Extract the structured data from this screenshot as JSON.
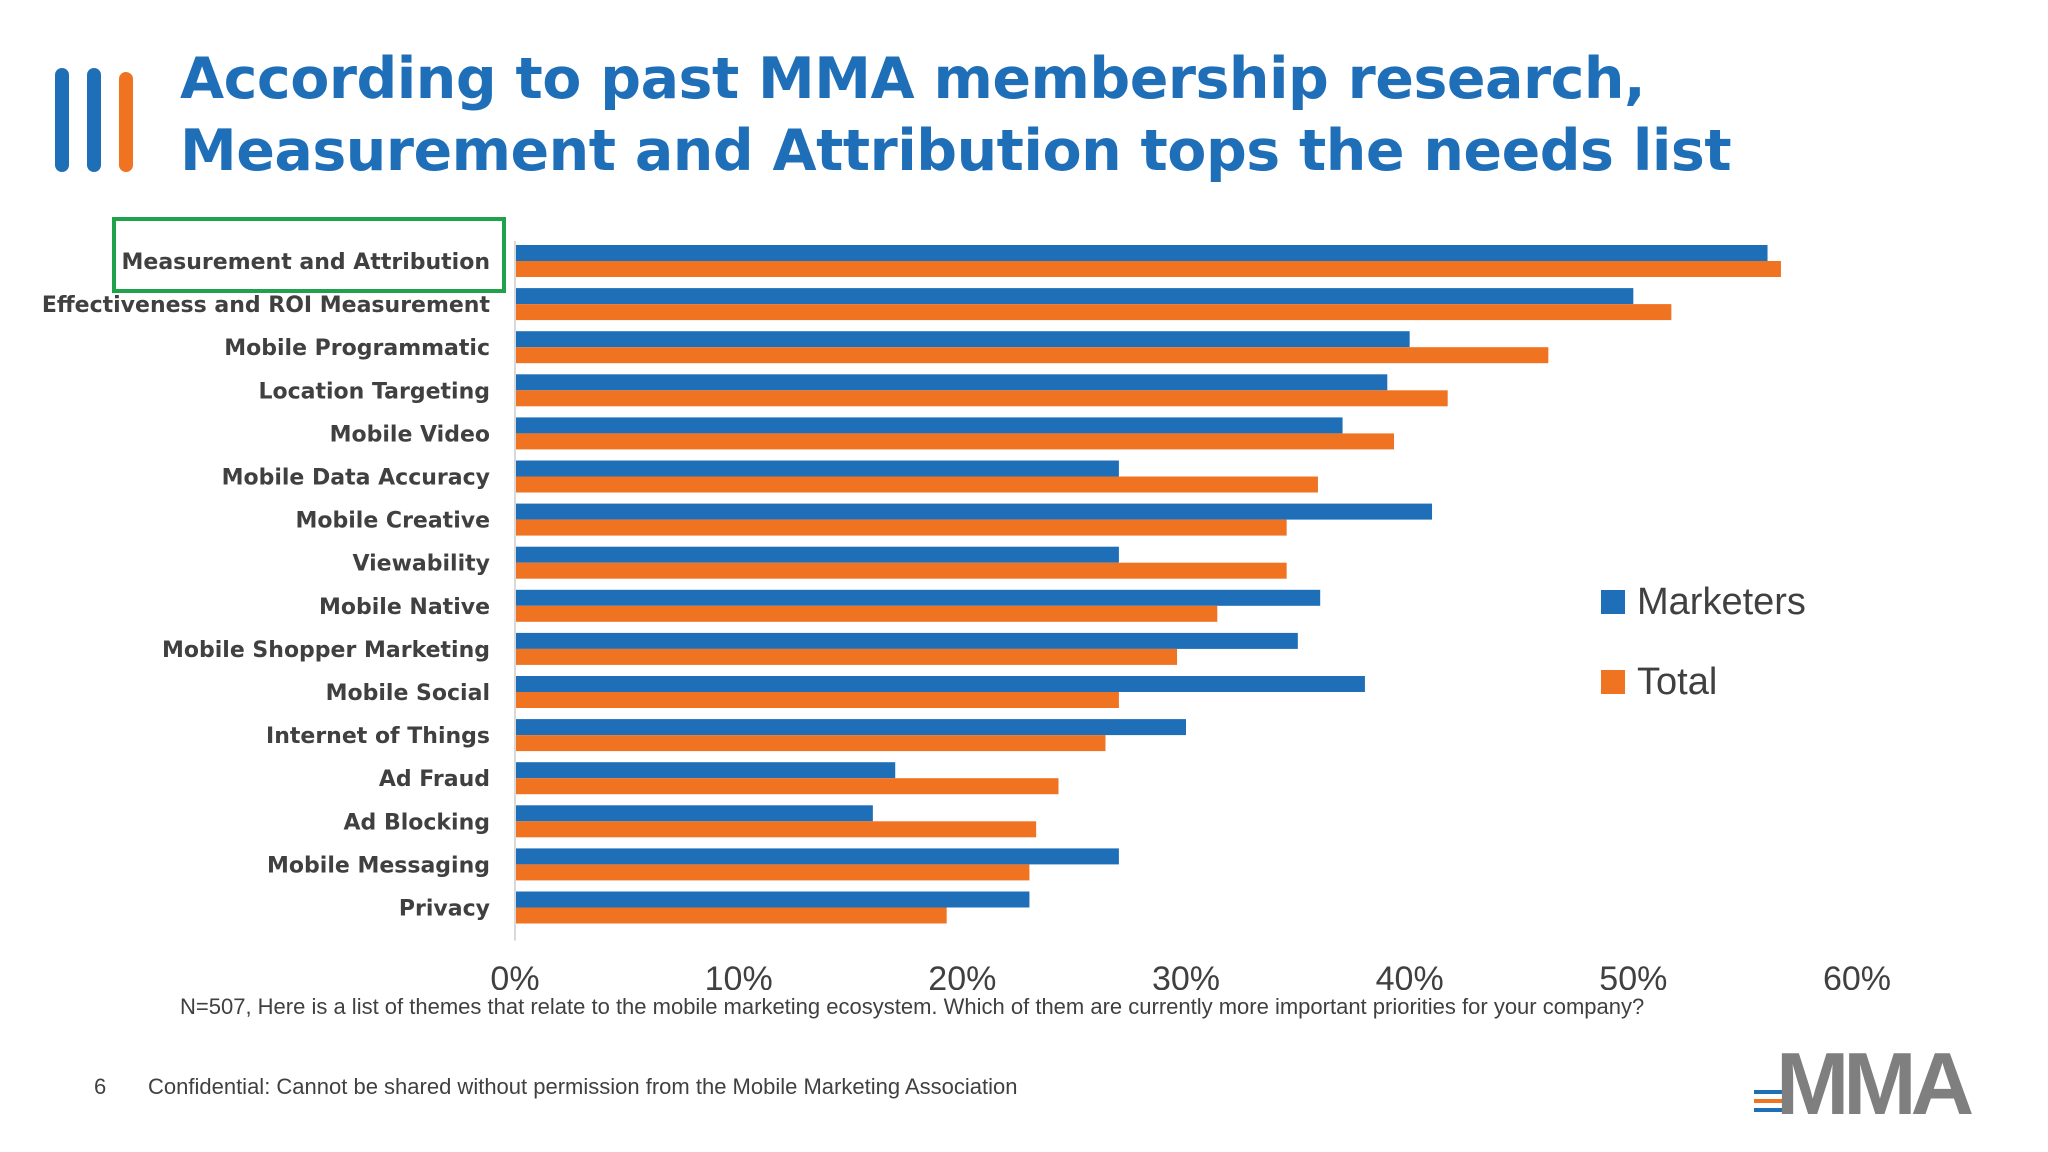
{
  "slide": {
    "title_line1": "According to past MMA membership research,",
    "title_line2": "Measurement and Attribution tops the needs list",
    "footnote": "N=507, Here is a list of themes that relate to the mobile marketing ecosystem. Which of them are currently more important priorities for your company?",
    "page_number": "6",
    "confidential": "Confidential: Cannot be shared without permission from the Mobile Marketing Association",
    "logo_text": "MMA"
  },
  "colors": {
    "title": "#1f6fb8",
    "marketers": "#1f6fb8",
    "total": "#f07322",
    "deco_blue": "#1f6fb8",
    "deco_orange": "#f07322",
    "highlight_box": "#1fa24a"
  },
  "chart_data": {
    "type": "bar",
    "orientation": "horizontal",
    "categories": [
      "Measurement and Attribution",
      "Effectiveness and ROI Measurement",
      "Mobile Programmatic",
      "Location Targeting",
      "Mobile Video",
      "Mobile Data Accuracy",
      "Mobile Creative",
      "Viewability",
      "Mobile Native",
      "Mobile Shopper Marketing",
      "Mobile Social",
      "Internet of Things",
      "Ad Fraud",
      "Ad Blocking",
      "Mobile Messaging",
      "Privacy"
    ],
    "series": [
      {
        "name": "Marketers",
        "values": [
          56,
          50,
          40,
          39,
          37,
          27,
          41,
          27,
          36,
          35,
          38,
          30,
          17,
          16,
          27,
          23
        ]
      },
      {
        "name": "Total",
        "values": [
          56.6,
          51.7,
          46.2,
          41.7,
          39.3,
          35.9,
          34.5,
          34.5,
          31.4,
          29.6,
          27,
          26.4,
          24.3,
          23.3,
          23,
          19.3
        ]
      }
    ],
    "xlim": [
      0,
      60
    ],
    "xticks": [
      "0%",
      "10%",
      "20%",
      "30%",
      "40%",
      "50%",
      "60%"
    ],
    "xlabel": "",
    "ylabel": "",
    "legend_position": "right",
    "highlighted_category": "Measurement and Attribution",
    "grid": false
  }
}
